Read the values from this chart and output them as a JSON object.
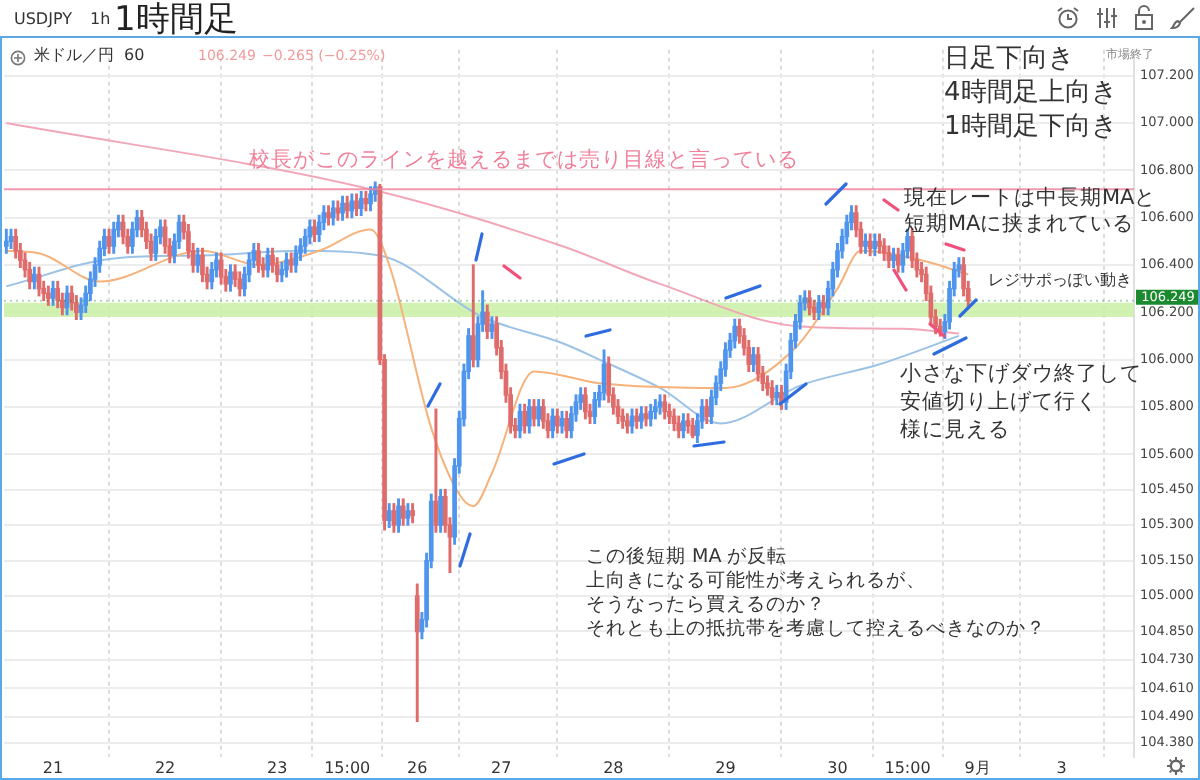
{
  "chart_data": {
    "type": "candlestick",
    "title": "1時間足",
    "annotations": [
      "USDJPY",
      "1h",
      "米ドル／円",
      "60",
      "106.249",
      "−0.265 (−0.25%)",
      "市場終了",
      "日足下向き",
      "4時間足上向き",
      "1時間足下向き",
      "現在レートは中長期MAと",
      "短期MAに挟まれている",
      "小さな下げダウ終了して",
      "安値切り上げて行く",
      "様に見える",
      "この後短期 MA が反転",
      "上向きになる可能性が考えられるが、",
      "そうなったら買えるのか？",
      "それとも上の抵抗帯を考慮して控えるべきなのか？"
    ],
    "categories": [
      null,
      null,
      null,
      null,
      null,
      null,
      null,
      null,
      null,
      null,
      "21",
      null,
      null,
      null,
      null,
      null,
      null,
      null,
      null,
      null,
      null,
      null,
      null,
      null,
      null,
      null,
      null,
      null,
      null,
      null,
      null,
      null,
      null,
      null,
      "22",
      null,
      null,
      null,
      null,
      null,
      null,
      null,
      null,
      null,
      null,
      null,
      null,
      null,
      null,
      null,
      null,
      null,
      null,
      null,
      null,
      null,
      null,
      null,
      "23",
      null,
      null,
      null,
      null,
      null,
      null,
      null,
      null,
      null,
      null,
      null,
      null,
      null,
      null,
      "15:00",
      null,
      null,
      null,
      null,
      null,
      null,
      null,
      null,
      null,
      null,
      null,
      null,
      null,
      null,
      "26",
      null,
      null,
      null,
      null,
      null,
      null,
      null,
      null,
      null,
      null,
      null,
      null,
      null,
      null,
      null,
      null,
      null,
      "27",
      null,
      null,
      null,
      null,
      null,
      null,
      null,
      null,
      null,
      null,
      null,
      null,
      null,
      null,
      null,
      null,
      null,
      null,
      null,
      null,
      null,
      null,
      null,
      "28",
      null,
      null,
      null,
      null,
      null,
      null,
      null,
      null,
      null,
      null,
      null,
      null,
      null,
      null,
      null,
      null,
      null,
      null,
      null,
      null,
      null,
      null,
      null,
      "29",
      null,
      null,
      null,
      null,
      null,
      null,
      null,
      null,
      null,
      null,
      null,
      null,
      null,
      null,
      null,
      null,
      null,
      null,
      null,
      null,
      null,
      null,
      null,
      "30",
      null,
      null,
      null,
      null,
      null,
      null,
      null,
      null,
      null,
      null,
      null,
      null,
      null,
      null,
      "15:00",
      null,
      null,
      null,
      null,
      null,
      null,
      null,
      null,
      null,
      null,
      null,
      null,
      null,
      null,
      "9月",
      null,
      null,
      null,
      null,
      null,
      null,
      null,
      null,
      null,
      null,
      null,
      null,
      null,
      null,
      null,
      null,
      null,
      "3",
      null,
      null,
      null,
      null,
      null,
      null,
      null,
      null,
      null,
      null,
      null,
      null,
      null,
      null,
      null
    ],
    "ohlc": [
      [
        106.48,
        106.55,
        106.45,
        106.5
      ],
      [
        106.5,
        106.55,
        106.47,
        106.52
      ],
      [
        106.52,
        106.55,
        106.43,
        106.46
      ],
      [
        106.46,
        106.49,
        106.39,
        106.42
      ],
      [
        106.42,
        106.45,
        106.35,
        106.38
      ],
      [
        106.38,
        106.41,
        106.3,
        106.33
      ],
      [
        106.33,
        106.39,
        106.3,
        106.36
      ],
      [
        106.36,
        106.39,
        106.27,
        106.3
      ],
      [
        106.3,
        106.33,
        106.25,
        106.28
      ],
      [
        106.28,
        106.31,
        106.23,
        106.26
      ],
      [
        106.26,
        106.33,
        106.23,
        106.3
      ],
      [
        106.3,
        106.33,
        106.22,
        106.25
      ],
      [
        106.25,
        106.28,
        106.19,
        106.22
      ],
      [
        106.22,
        106.31,
        106.19,
        106.28
      ],
      [
        106.28,
        106.31,
        106.21,
        106.24
      ],
      [
        106.24,
        106.27,
        106.17,
        106.2
      ],
      [
        106.2,
        106.26,
        106.17,
        106.23
      ],
      [
        106.23,
        106.31,
        106.2,
        106.28
      ],
      [
        106.28,
        106.37,
        106.25,
        106.34
      ],
      [
        106.34,
        106.43,
        106.31,
        106.4
      ],
      [
        106.4,
        106.5,
        106.37,
        106.47
      ],
      [
        106.47,
        106.55,
        106.44,
        106.52
      ],
      [
        106.52,
        106.55,
        106.45,
        106.48
      ],
      [
        106.48,
        106.58,
        106.45,
        106.55
      ],
      [
        106.55,
        106.61,
        106.52,
        106.58
      ],
      [
        106.58,
        106.61,
        106.49,
        106.52
      ],
      [
        106.52,
        106.55,
        106.45,
        106.48
      ],
      [
        106.48,
        106.58,
        106.45,
        106.55
      ],
      [
        106.55,
        106.63,
        106.52,
        106.6
      ],
      [
        106.6,
        106.63,
        106.52,
        106.55
      ],
      [
        106.55,
        106.58,
        106.47,
        106.5
      ],
      [
        106.5,
        106.53,
        106.42,
        106.45
      ],
      [
        106.45,
        106.55,
        106.42,
        106.52
      ],
      [
        106.52,
        106.59,
        106.49,
        106.56
      ],
      [
        106.56,
        106.59,
        106.45,
        106.48
      ],
      [
        106.48,
        106.51,
        106.41,
        106.44
      ],
      [
        106.44,
        106.53,
        106.41,
        106.5
      ],
      [
        106.5,
        106.61,
        106.47,
        106.58
      ],
      [
        106.58,
        106.61,
        106.51,
        106.54
      ],
      [
        106.54,
        106.57,
        106.43,
        106.46
      ],
      [
        106.46,
        106.49,
        106.37,
        106.4
      ],
      [
        106.4,
        106.47,
        106.37,
        106.44
      ],
      [
        106.44,
        106.47,
        106.33,
        106.36
      ],
      [
        106.36,
        106.39,
        106.3,
        106.33
      ],
      [
        106.33,
        106.41,
        106.3,
        106.38
      ],
      [
        106.38,
        106.45,
        106.35,
        106.42
      ],
      [
        106.42,
        106.45,
        106.32,
        106.35
      ],
      [
        106.35,
        106.38,
        106.29,
        106.32
      ],
      [
        106.32,
        106.4,
        106.29,
        106.37
      ],
      [
        106.37,
        106.4,
        106.31,
        106.34
      ],
      [
        106.34,
        106.37,
        106.27,
        106.3
      ],
      [
        106.3,
        106.39,
        106.27,
        106.36
      ],
      [
        106.36,
        106.45,
        106.33,
        106.42
      ],
      [
        106.42,
        106.49,
        106.39,
        106.46
      ],
      [
        106.46,
        106.49,
        106.37,
        106.4
      ],
      [
        106.4,
        106.43,
        106.35,
        106.38
      ],
      [
        106.38,
        106.47,
        106.35,
        106.44
      ],
      [
        106.44,
        106.47,
        106.37,
        106.4
      ],
      [
        106.4,
        106.43,
        106.33,
        106.36
      ],
      [
        106.36,
        106.41,
        106.33,
        106.38
      ],
      [
        106.38,
        106.45,
        106.35,
        106.42
      ],
      [
        106.42,
        106.45,
        106.37,
        106.4
      ],
      [
        106.4,
        106.48,
        106.37,
        106.45
      ],
      [
        106.45,
        106.51,
        106.42,
        106.48
      ],
      [
        106.48,
        106.55,
        106.45,
        106.52
      ],
      [
        106.52,
        106.59,
        106.49,
        106.56
      ],
      [
        106.56,
        106.59,
        106.5,
        106.53
      ],
      [
        106.53,
        106.61,
        106.5,
        106.58
      ],
      [
        106.58,
        106.65,
        106.55,
        106.62
      ],
      [
        106.62,
        106.65,
        106.57,
        106.6
      ],
      [
        106.6,
        106.67,
        106.57,
        106.64
      ],
      [
        106.64,
        106.67,
        106.59,
        106.62
      ],
      [
        106.62,
        106.69,
        106.59,
        106.66
      ],
      [
        106.66,
        106.69,
        106.6,
        106.63
      ],
      [
        106.63,
        106.7,
        106.6,
        106.67
      ],
      [
        106.67,
        106.7,
        106.61,
        106.64
      ],
      [
        106.64,
        106.71,
        106.61,
        106.68
      ],
      [
        106.68,
        106.71,
        106.63,
        106.66
      ],
      [
        106.66,
        106.73,
        106.63,
        106.7
      ],
      [
        106.7,
        106.75,
        106.67,
        106.73
      ],
      [
        106.73,
        106.74,
        105.98,
        106.0
      ],
      [
        106.0,
        106.02,
        105.28,
        105.32
      ],
      [
        105.32,
        105.39,
        105.29,
        105.36
      ],
      [
        105.36,
        105.39,
        105.27,
        105.3
      ],
      [
        105.3,
        105.41,
        105.27,
        105.38
      ],
      [
        105.38,
        105.41,
        105.3,
        105.33
      ],
      [
        105.33,
        105.39,
        105.3,
        105.36
      ],
      [
        105.36,
        105.39,
        105.31,
        105.34
      ],
      [
        105.0,
        105.05,
        104.47,
        104.85
      ],
      [
        104.85,
        104.93,
        104.82,
        104.9
      ],
      [
        104.9,
        105.18,
        104.87,
        105.15
      ],
      [
        105.15,
        105.43,
        105.12,
        105.4
      ],
      [
        105.4,
        105.79,
        105.27,
        105.3
      ],
      [
        105.3,
        105.45,
        105.27,
        105.42
      ],
      [
        105.42,
        105.45,
        105.27,
        105.3
      ],
      [
        105.3,
        105.33,
        105.1,
        105.25
      ],
      [
        105.25,
        105.58,
        105.22,
        105.55
      ],
      [
        105.55,
        105.78,
        105.52,
        105.75
      ],
      [
        105.75,
        105.98,
        105.72,
        105.95
      ],
      [
        105.95,
        106.13,
        105.92,
        106.1
      ],
      [
        106.1,
        106.4,
        105.97,
        106.0
      ],
      [
        106.0,
        106.18,
        105.97,
        106.15
      ],
      [
        106.15,
        106.29,
        106.12,
        106.2
      ],
      [
        106.2,
        106.23,
        106.09,
        106.12
      ],
      [
        106.12,
        106.18,
        106.09,
        106.15
      ],
      [
        106.15,
        106.18,
        106.02,
        106.05
      ],
      [
        106.05,
        106.08,
        105.92,
        105.95
      ],
      [
        105.95,
        105.98,
        105.82,
        105.85
      ],
      [
        105.85,
        105.88,
        105.69,
        105.72
      ],
      [
        105.72,
        105.75,
        105.67,
        105.7
      ],
      [
        105.7,
        105.81,
        105.67,
        105.78
      ],
      [
        105.78,
        105.81,
        105.69,
        105.72
      ],
      [
        105.72,
        105.83,
        105.69,
        105.8
      ],
      [
        105.8,
        105.83,
        105.72,
        105.75
      ],
      [
        105.75,
        105.83,
        105.72,
        105.8
      ],
      [
        105.8,
        105.83,
        105.71,
        105.74
      ],
      [
        105.74,
        105.77,
        105.67,
        105.7
      ],
      [
        105.7,
        105.79,
        105.67,
        105.76
      ],
      [
        105.76,
        105.79,
        105.69,
        105.72
      ],
      [
        105.72,
        105.78,
        105.69,
        105.75
      ],
      [
        105.75,
        105.78,
        105.67,
        105.7
      ],
      [
        105.7,
        105.8,
        105.67,
        105.77
      ],
      [
        105.77,
        105.85,
        105.74,
        105.82
      ],
      [
        105.82,
        105.88,
        105.79,
        105.85
      ],
      [
        105.85,
        105.88,
        105.75,
        105.78
      ],
      [
        105.78,
        105.81,
        105.73,
        105.76
      ],
      [
        105.76,
        105.86,
        105.73,
        105.83
      ],
      [
        105.83,
        105.89,
        105.8,
        105.86
      ],
      [
        105.86,
        106.04,
        105.83,
        105.98
      ],
      [
        105.98,
        106.01,
        105.82,
        105.85
      ],
      [
        105.85,
        105.88,
        105.77,
        105.8
      ],
      [
        105.8,
        105.83,
        105.73,
        105.76
      ],
      [
        105.76,
        105.79,
        105.71,
        105.74
      ],
      [
        105.74,
        105.77,
        105.69,
        105.72
      ],
      [
        105.72,
        105.79,
        105.69,
        105.76
      ],
      [
        105.76,
        105.79,
        105.71,
        105.74
      ],
      [
        105.74,
        105.8,
        105.71,
        105.77
      ],
      [
        105.77,
        105.8,
        105.72,
        105.75
      ],
      [
        105.75,
        105.81,
        105.72,
        105.78
      ],
      [
        105.78,
        105.83,
        105.75,
        105.8
      ],
      [
        105.8,
        105.85,
        105.77,
        105.82
      ],
      [
        105.82,
        105.85,
        105.75,
        105.78
      ],
      [
        105.78,
        105.81,
        105.73,
        105.76
      ],
      [
        105.76,
        105.79,
        105.7,
        105.73
      ],
      [
        105.73,
        105.76,
        105.67,
        105.7
      ],
      [
        105.7,
        105.77,
        105.67,
        105.74
      ],
      [
        105.74,
        105.77,
        105.69,
        105.72
      ],
      [
        105.72,
        105.75,
        105.67,
        105.68
      ],
      [
        105.68,
        105.77,
        105.65,
        105.74
      ],
      [
        105.74,
        105.83,
        105.71,
        105.8
      ],
      [
        105.8,
        105.83,
        105.73,
        105.76
      ],
      [
        105.76,
        105.87,
        105.73,
        105.84
      ],
      [
        105.84,
        105.93,
        105.81,
        105.9
      ],
      [
        105.9,
        105.99,
        105.87,
        105.96
      ],
      [
        105.96,
        106.07,
        105.93,
        106.04
      ],
      [
        106.04,
        106.11,
        106.01,
        106.08
      ],
      [
        106.08,
        106.17,
        106.05,
        106.14
      ],
      [
        106.14,
        106.17,
        106.07,
        106.1
      ],
      [
        106.1,
        106.13,
        106.02,
        106.05
      ],
      [
        106.05,
        106.08,
        105.95,
        105.98
      ],
      [
        105.98,
        106.05,
        105.95,
        106.02
      ],
      [
        106.02,
        106.05,
        105.91,
        105.94
      ],
      [
        105.94,
        105.97,
        105.87,
        105.9
      ],
      [
        105.9,
        105.93,
        105.85,
        105.88
      ],
      [
        105.88,
        105.91,
        105.81,
        105.84
      ],
      [
        105.84,
        105.89,
        105.81,
        105.86
      ],
      [
        105.86,
        105.89,
        105.79,
        105.82
      ],
      [
        105.82,
        105.98,
        105.79,
        105.95
      ],
      [
        105.95,
        106.11,
        105.92,
        106.08
      ],
      [
        106.08,
        106.19,
        106.05,
        106.16
      ],
      [
        106.16,
        106.27,
        106.13,
        106.24
      ],
      [
        106.24,
        106.29,
        106.21,
        106.26
      ],
      [
        106.26,
        106.29,
        106.19,
        106.22
      ],
      [
        106.22,
        106.25,
        106.17,
        106.2
      ],
      [
        106.2,
        106.27,
        106.17,
        106.24
      ],
      [
        106.24,
        106.27,
        106.19,
        106.22
      ],
      [
        106.22,
        106.33,
        106.19,
        106.3
      ],
      [
        106.3,
        106.41,
        106.27,
        106.38
      ],
      [
        106.38,
        106.49,
        106.35,
        106.46
      ],
      [
        106.46,
        106.55,
        106.43,
        106.52
      ],
      [
        106.52,
        106.61,
        106.49,
        106.58
      ],
      [
        106.58,
        106.65,
        106.55,
        106.62
      ],
      [
        106.62,
        106.65,
        106.52,
        106.55
      ],
      [
        106.55,
        106.58,
        106.45,
        106.48
      ],
      [
        106.48,
        106.53,
        106.45,
        106.5
      ],
      [
        106.5,
        106.53,
        106.44,
        106.47
      ],
      [
        106.47,
        106.53,
        106.44,
        106.5
      ],
      [
        106.5,
        106.53,
        106.45,
        106.48
      ],
      [
        106.48,
        106.51,
        106.42,
        106.45
      ],
      [
        106.45,
        106.48,
        106.39,
        106.42
      ],
      [
        106.42,
        106.47,
        106.39,
        106.44
      ],
      [
        106.44,
        106.47,
        106.37,
        106.4
      ],
      [
        106.4,
        106.49,
        106.37,
        106.46
      ],
      [
        106.46,
        106.55,
        106.43,
        106.52
      ],
      [
        106.52,
        106.55,
        106.39,
        106.42
      ],
      [
        106.42,
        106.45,
        106.35,
        106.38
      ],
      [
        106.38,
        106.41,
        106.33,
        106.36
      ],
      [
        106.36,
        106.39,
        106.25,
        106.28
      ],
      [
        106.28,
        106.31,
        106.15,
        106.18
      ],
      [
        106.18,
        106.21,
        106.11,
        106.14
      ],
      [
        106.14,
        106.17,
        106.1,
        106.12
      ],
      [
        106.12,
        106.19,
        106.09,
        106.16
      ],
      [
        106.16,
        106.33,
        106.13,
        106.3
      ],
      [
        106.3,
        106.41,
        106.27,
        106.38
      ],
      [
        106.38,
        106.43,
        106.35,
        106.4
      ],
      [
        106.4,
        106.43,
        106.27,
        106.3
      ],
      [
        106.3,
        106.33,
        106.22,
        106.249
      ],
      null,
      null,
      null,
      null,
      null,
      null,
      null,
      null,
      null,
      null,
      null,
      null,
      null,
      null,
      null,
      null,
      null,
      null,
      null,
      null,
      null,
      null,
      null,
      null,
      null,
      null,
      null,
      null,
      null,
      null,
      null,
      null,
      null,
      null,
      null
    ],
    "series": [
      {
        "type": "line",
        "color": "#f6b27a",
        "values": [
          106.46,
          null,
          null,
          null,
          null,
          null,
          null,
          106.45,
          null,
          null,
          null,
          null,
          null,
          null,
          null,
          null,
          null,
          null,
          null,
          null,
          106.33,
          null,
          null,
          null,
          null,
          null,
          null,
          null,
          null,
          null,
          null,
          null,
          null,
          null,
          null,
          null,
          null,
          null,
          null,
          null,
          null,
          null,
          106.46,
          null,
          null,
          null,
          null,
          null,
          null,
          null,
          null,
          null,
          null,
          null,
          106.4,
          null,
          null,
          null,
          null,
          null,
          null,
          null,
          null,
          null,
          null,
          null,
          null,
          106.46,
          null,
          null,
          null,
          null,
          null,
          null,
          null,
          null,
          null,
          null,
          106.55,
          null,
          null,
          null,
          106.4,
          null,
          null,
          null,
          null,
          null,
          null,
          null,
          null,
          105.71,
          null,
          null,
          null,
          null,
          null,
          105.43,
          null,
          null,
          105.38,
          null,
          null,
          null,
          105.52,
          null,
          null,
          null,
          null,
          null,
          null,
          null,
          null,
          105.95,
          null,
          null,
          null,
          null,
          null,
          null,
          null,
          null,
          null,
          null,
          null,
          null,
          null,
          105.9,
          null,
          null,
          null,
          null,
          null,
          null,
          null,
          null,
          null,
          null,
          null,
          null,
          null,
          null,
          null,
          null,
          null,
          null,
          null,
          null,
          null,
          null,
          null,
          null,
          null,
          null,
          105.88,
          null,
          null,
          null,
          null,
          null,
          null,
          null,
          null,
          null,
          null,
          null,
          null,
          null,
          null,
          106.05,
          null,
          null,
          null,
          null,
          null,
          null,
          null,
          null,
          106.3,
          null,
          null,
          null,
          null,
          106.46,
          null,
          null,
          null,
          null,
          null,
          null,
          null,
          null,
          null,
          null,
          null,
          null,
          106.42,
          null,
          null,
          null,
          null,
          null,
          null,
          null,
          null,
          null,
          106.36,
          null,
          null,
          null,
          null,
          null,
          null,
          null,
          null,
          null,
          null,
          null,
          null,
          null,
          null,
          null,
          null,
          null,
          null,
          null,
          null,
          null,
          null,
          null,
          null,
          null,
          null,
          null,
          null,
          null,
          null,
          null,
          null,
          null,
          null,
          null
        ]
      },
      {
        "type": "line",
        "color": "#9cc3e6",
        "values": [
          106.31,
          null,
          null,
          null,
          null,
          null,
          null,
          null,
          null,
          null,
          null,
          null,
          null,
          null,
          null,
          null,
          null,
          null,
          null,
          null,
          null,
          null,
          null,
          null,
          106.43,
          null,
          null,
          null,
          null,
          null,
          null,
          null,
          null,
          null,
          null,
          null,
          null,
          null,
          null,
          null,
          null,
          null,
          106.44,
          null,
          null,
          null,
          null,
          null,
          null,
          null,
          null,
          null,
          null,
          null,
          null,
          null,
          null,
          null,
          null,
          null,
          null,
          null,
          null,
          106.46,
          null,
          null,
          null,
          null,
          null,
          null,
          null,
          null,
          null,
          null,
          null,
          null,
          null,
          null,
          null,
          null,
          106.44,
          null,
          null,
          null,
          null,
          null,
          null,
          null,
          null,
          null,
          null,
          null,
          null,
          null,
          null,
          null,
          null,
          null,
          null,
          null,
          null,
          null,
          106.18,
          null,
          null,
          null,
          null,
          null,
          null,
          null,
          null,
          null,
          null,
          null,
          null,
          null,
          null,
          null,
          null,
          106.07,
          null,
          null,
          null,
          null,
          null,
          null,
          null,
          106.0,
          null,
          null,
          null,
          null,
          null,
          null,
          null,
          null,
          null,
          null,
          null,
          null,
          105.88,
          null,
          null,
          null,
          null,
          null,
          null,
          null,
          null,
          null,
          null,
          null,
          null,
          105.73,
          null,
          null,
          null,
          null,
          null,
          null,
          null,
          null,
          null,
          null,
          null,
          null,
          null,
          null,
          null,
          null,
          105.89,
          null,
          null,
          null,
          null,
          null,
          null,
          null,
          null,
          null,
          null,
          null,
          null,
          null,
          null,
          null,
          null,
          105.98,
          null,
          null,
          null,
          null,
          null,
          null,
          null,
          null,
          null,
          null,
          null,
          null,
          null,
          null,
          null,
          null,
          106.1,
          null,
          null,
          null,
          null,
          null,
          null,
          null,
          null,
          null,
          null,
          null,
          null,
          null,
          null,
          null,
          null,
          null,
          null,
          null,
          null,
          null,
          null,
          null,
          null,
          null,
          null,
          null,
          null,
          null,
          null,
          null,
          null,
          null,
          null,
          null,
          null,
          null
        ]
      },
      {
        "type": "line",
        "color": "#f2a7b8",
        "values": [
          107.0,
          null,
          null,
          null,
          null,
          null,
          null,
          null,
          null,
          null,
          null,
          null,
          null,
          null,
          null,
          null,
          null,
          null,
          null,
          null,
          null,
          null,
          null,
          null,
          null,
          null,
          null,
          null,
          null,
          null,
          null,
          null,
          null,
          null,
          null,
          null,
          null,
          null,
          null,
          null,
          null,
          null,
          null,
          null,
          null,
          null,
          null,
          null,
          null,
          null,
          null,
          null,
          null,
          null,
          null,
          null,
          null,
          null,
          null,
          null,
          null,
          null,
          null,
          null,
          null,
          null,
          null,
          null,
          null,
          null,
          null,
          null,
          null,
          null,
          null,
          null,
          null,
          null,
          106.72,
          null,
          null,
          null,
          null,
          null,
          null,
          null,
          null,
          null,
          null,
          null,
          null,
          null,
          null,
          null,
          null,
          null,
          null,
          null,
          null,
          null,
          null,
          null,
          null,
          null,
          null,
          null,
          null,
          null,
          null,
          null,
          null,
          null,
          null,
          null,
          null,
          null,
          null,
          null,
          null,
          106.48,
          null,
          null,
          null,
          null,
          null,
          null,
          null,
          null,
          null,
          null,
          null,
          null,
          null,
          null,
          null,
          null,
          null,
          null,
          null,
          null,
          106.32,
          null,
          null,
          null,
          null,
          null,
          null,
          null,
          null,
          null,
          null,
          null,
          null,
          null,
          null,
          null,
          null,
          null,
          null,
          null,
          null,
          null,
          null,
          null,
          null,
          null,
          null,
          null,
          null,
          null,
          106.14,
          null,
          null,
          null,
          null,
          null,
          null,
          null,
          null,
          null,
          null,
          null,
          null,
          null,
          null,
          null,
          null,
          null,
          null,
          null,
          null,
          null,
          106.13,
          null,
          null,
          null,
          null,
          null,
          null,
          null,
          null,
          null,
          null,
          null,
          106.11,
          null,
          null,
          null,
          null,
          null,
          null,
          null,
          null,
          null,
          null,
          null,
          null,
          null,
          null,
          null,
          null,
          null,
          null,
          null,
          null,
          null,
          null,
          null,
          null,
          null,
          null,
          null,
          null,
          null,
          null,
          null,
          null,
          null,
          null,
          null,
          null,
          null
        ]
      }
    ],
    "ylim": [
      104.32,
      107.31
    ],
    "yticks": [
      {
        "value": 107.2,
        "label": "107.200"
      },
      {
        "value": 107.0,
        "label": "107.000"
      },
      {
        "value": 106.8,
        "label": "106.800"
      },
      {
        "value": 106.6,
        "label": "106.600"
      },
      {
        "value": 106.4,
        "label": "106.400"
      },
      {
        "value": 106.2,
        "label": "106.200"
      },
      {
        "value": 106.0,
        "label": "106.000"
      },
      {
        "value": 105.8,
        "label": "105.800"
      },
      {
        "value": 105.6,
        "label": "105.600"
      },
      {
        "value": 105.45,
        "label": "105.450"
      },
      {
        "value": 105.3,
        "label": "105.300"
      },
      {
        "value": 105.15,
        "label": "105.150"
      },
      {
        "value": 105.0,
        "label": "105.000"
      },
      {
        "value": 104.85,
        "label": "104.850"
      },
      {
        "value": 104.73,
        "label": "104.730"
      },
      {
        "value": 104.61,
        "label": "104.610"
      },
      {
        "value": 104.49,
        "label": "104.490"
      },
      {
        "value": 104.38,
        "label": "104.380"
      }
    ],
    "grid": true,
    "ref_lines": [
      {
        "axis": "y",
        "value": 106.72,
        "label": "校長がこのラインを越えるまでは売り目線と言っている",
        "color": "#f0809a",
        "line_style": "solid"
      },
      {
        "axis": "y",
        "value": 106.249,
        "label": "106.249",
        "color": "#1b8a2e",
        "line_style": "dotted"
      }
    ],
    "bands": [
      {
        "axis": "y",
        "from": 106.18,
        "to": 106.24,
        "label": "レジサポっぽい動き",
        "color": "#c9f0a5"
      }
    ]
  }
}
